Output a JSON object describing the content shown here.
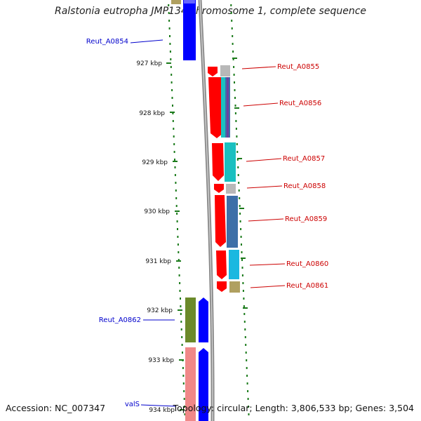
{
  "title": "Ralstonia eutropha JMP134 chromosome 1, complete sequence",
  "footer": {
    "accession": "Accession: NC_007347",
    "summary": "Topology: circular; Length: 3,806,533 bp; Genes: 3,504"
  },
  "ruler": {
    "tick_labels": [
      "927 kbp",
      "928 kbp",
      "929 kbp",
      "930 kbp",
      "931 kbp",
      "932 kbp",
      "933 kbp",
      "934 kbp"
    ]
  },
  "genes": {
    "reverse_strand": [
      "Reut_A0854",
      "Reut_A0862",
      "valS"
    ],
    "forward_strand": [
      "Reut_A0855",
      "Reut_A0856",
      "Reut_A0857",
      "Reut_A0858",
      "Reut_A0859",
      "Reut_A0860",
      "Reut_A0861"
    ]
  },
  "colors": {
    "forward_gene": "#ff0000",
    "reverse_gene": "#0000ff",
    "forward_label": "#cc0000",
    "reverse_label": "#0000cc",
    "backbone": "#888888",
    "tick": "#1a7a1a",
    "cog_gray": "#b8b8b8",
    "cog_cyan": "#1ac0c0",
    "cog_steelblue": "#3d6fa8",
    "cog_lightcyan": "#1ab8e0",
    "cog_khaki": "#b0a060",
    "cog_olive": "#6b8a2a",
    "cog_pink": "#f08888"
  }
}
